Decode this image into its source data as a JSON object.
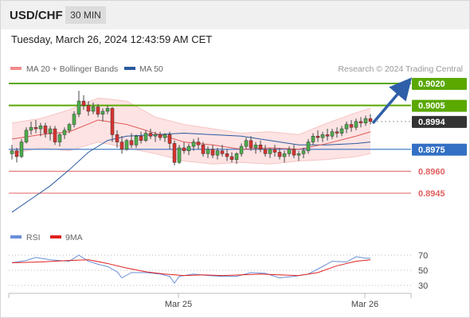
{
  "header": {
    "pair": "USD/CHF",
    "timeframe": "30 MIN"
  },
  "timestamp": "Tuesday, March 26, 2024 12:43:59 AM CET",
  "legend": {
    "ma20_label": "MA 20 + Bollinger Bands",
    "ma50_label": "MA 50",
    "ma20_color": "#f28b8b",
    "ma50_color": "#2a5aa0"
  },
  "copyright": "Research © 2024 Trading Central",
  "colors": {
    "resistance": "#5aa800",
    "support": "#e06060",
    "pivot": "#3370c4",
    "arrow": "#2f5fa8",
    "bullish": "#4cae4c",
    "bearish": "#d9332f",
    "band_fill": "#fde3e3",
    "rsi": "#6a8fd8",
    "rsi_ma": "#e02020"
  },
  "chart_data": [
    {
      "type": "candlestick",
      "title": "USD/CHF 30 MIN",
      "ylim": [
        0.8925,
        0.9025
      ],
      "levels": [
        {
          "value": "0.9020",
          "kind": "resistance"
        },
        {
          "value": "0.9005",
          "kind": "resistance"
        },
        {
          "value": "0.8994",
          "kind": "current"
        },
        {
          "value": "0.8975",
          "kind": "pivot"
        },
        {
          "value": "0.8960",
          "kind": "support"
        },
        {
          "value": "0.8945",
          "kind": "support"
        }
      ],
      "forecast": "up",
      "candles": [
        [
          0.8972,
          0.8978,
          0.8968,
          0.8974
        ],
        [
          0.8974,
          0.8976,
          0.8966,
          0.897
        ],
        [
          0.897,
          0.8982,
          0.8969,
          0.898
        ],
        [
          0.898,
          0.899,
          0.8979,
          0.8988
        ],
        [
          0.8988,
          0.8994,
          0.8985,
          0.899
        ],
        [
          0.899,
          0.8995,
          0.8986,
          0.8989
        ],
        [
          0.8989,
          0.8993,
          0.8984,
          0.8991
        ],
        [
          0.8991,
          0.8993,
          0.8983,
          0.8986
        ],
        [
          0.8986,
          0.8991,
          0.8981,
          0.8989
        ],
        [
          0.8989,
          0.8991,
          0.8978,
          0.898
        ],
        [
          0.898,
          0.8986,
          0.8977,
          0.8985
        ],
        [
          0.8985,
          0.899,
          0.8982,
          0.8988
        ],
        [
          0.8988,
          0.8993,
          0.8986,
          0.8992
        ],
        [
          0.8992,
          0.9001,
          0.899,
          0.8999
        ],
        [
          0.8999,
          0.9015,
          0.8997,
          0.9008
        ],
        [
          0.9008,
          0.9012,
          0.9002,
          0.9005
        ],
        [
          0.9005,
          0.9008,
          0.8998,
          0.9001
        ],
        [
          0.9001,
          0.9007,
          0.8999,
          0.9004
        ],
        [
          0.9004,
          0.9006,
          0.8997,
          0.8999
        ],
        [
          0.8999,
          0.9003,
          0.8994,
          0.9001
        ],
        [
          0.9001,
          0.9005,
          0.8999,
          0.9003
        ],
        [
          0.9003,
          0.9004,
          0.898,
          0.8985
        ],
        [
          0.8985,
          0.8988,
          0.8976,
          0.898
        ],
        [
          0.898,
          0.8984,
          0.8972,
          0.8975
        ],
        [
          0.8975,
          0.8982,
          0.8974,
          0.8981
        ],
        [
          0.8981,
          0.8986,
          0.8976,
          0.8978
        ],
        [
          0.8978,
          0.8985,
          0.8976,
          0.8984
        ],
        [
          0.8984,
          0.8987,
          0.8979,
          0.8981
        ],
        [
          0.8981,
          0.8988,
          0.898,
          0.8986
        ],
        [
          0.8986,
          0.8989,
          0.8982,
          0.8984
        ],
        [
          0.8984,
          0.8987,
          0.898,
          0.8985
        ],
        [
          0.8985,
          0.8987,
          0.8981,
          0.8983
        ],
        [
          0.8983,
          0.8986,
          0.898,
          0.8985
        ],
        [
          0.8985,
          0.8987,
          0.8975,
          0.8979
        ],
        [
          0.8979,
          0.8981,
          0.8964,
          0.8966
        ],
        [
          0.8966,
          0.8978,
          0.8965,
          0.8976
        ],
        [
          0.8976,
          0.898,
          0.8972,
          0.8974
        ],
        [
          0.8974,
          0.8979,
          0.8971,
          0.8977
        ],
        [
          0.8977,
          0.8982,
          0.8974,
          0.898
        ],
        [
          0.898,
          0.8983,
          0.8975,
          0.8978
        ],
        [
          0.8978,
          0.898,
          0.897,
          0.8972
        ],
        [
          0.8972,
          0.8977,
          0.8969,
          0.8975
        ],
        [
          0.8975,
          0.8978,
          0.8969,
          0.8971
        ],
        [
          0.8971,
          0.8976,
          0.8968,
          0.8974
        ],
        [
          0.8974,
          0.8978,
          0.897,
          0.8972
        ],
        [
          0.8972,
          0.8975,
          0.8967,
          0.897
        ],
        [
          0.897,
          0.8973,
          0.8966,
          0.8968
        ],
        [
          0.8968,
          0.8973,
          0.8965,
          0.8972
        ],
        [
          0.8972,
          0.8979,
          0.897,
          0.8977
        ],
        [
          0.8977,
          0.8983,
          0.8975,
          0.8981
        ],
        [
          0.8981,
          0.8984,
          0.8974,
          0.8976
        ],
        [
          0.8976,
          0.898,
          0.8972,
          0.8978
        ],
        [
          0.8978,
          0.8981,
          0.8973,
          0.8975
        ],
        [
          0.8975,
          0.8978,
          0.897,
          0.8972
        ],
        [
          0.8972,
          0.8976,
          0.8969,
          0.8975
        ],
        [
          0.8975,
          0.8978,
          0.897,
          0.8973
        ],
        [
          0.8973,
          0.8976,
          0.8968,
          0.897
        ],
        [
          0.897,
          0.8974,
          0.8966,
          0.8972
        ],
        [
          0.8972,
          0.8977,
          0.897,
          0.8975
        ],
        [
          0.8975,
          0.8978,
          0.8969,
          0.8971
        ],
        [
          0.8971,
          0.8974,
          0.8967,
          0.8972
        ],
        [
          0.8972,
          0.8976,
          0.8969,
          0.8974
        ],
        [
          0.8974,
          0.8982,
          0.8972,
          0.898
        ],
        [
          0.898,
          0.8986,
          0.8978,
          0.8984
        ],
        [
          0.8984,
          0.8988,
          0.898,
          0.8983
        ],
        [
          0.8983,
          0.8987,
          0.898,
          0.8985
        ],
        [
          0.8985,
          0.8989,
          0.8981,
          0.8984
        ],
        [
          0.8984,
          0.8989,
          0.8982,
          0.8987
        ],
        [
          0.8987,
          0.899,
          0.8983,
          0.8986
        ],
        [
          0.8986,
          0.8991,
          0.8984,
          0.8989
        ],
        [
          0.8989,
          0.8994,
          0.8986,
          0.8992
        ],
        [
          0.8992,
          0.8995,
          0.8987,
          0.899
        ],
        [
          0.899,
          0.8996,
          0.8988,
          0.8994
        ],
        [
          0.8994,
          0.8997,
          0.899,
          0.8993
        ],
        [
          0.8993,
          0.8998,
          0.8991,
          0.8996
        ],
        [
          0.8996,
          0.8999,
          0.8992,
          0.8994
        ]
      ],
      "ma20": [
        [
          0,
          0.8982
        ],
        [
          6,
          0.8985
        ],
        [
          12,
          0.8987
        ],
        [
          18,
          0.8995
        ],
        [
          24,
          0.8992
        ],
        [
          30,
          0.8986
        ],
        [
          36,
          0.898
        ],
        [
          42,
          0.8978
        ],
        [
          48,
          0.8975
        ],
        [
          54,
          0.8976
        ],
        [
          60,
          0.8975
        ],
        [
          66,
          0.8979
        ],
        [
          72,
          0.8984
        ],
        [
          75,
          0.8987
        ]
      ],
      "ma50": [
        [
          0,
          0.8932
        ],
        [
          4,
          0.8941
        ],
        [
          8,
          0.895
        ],
        [
          12,
          0.8961
        ],
        [
          16,
          0.8973
        ],
        [
          20,
          0.8981
        ],
        [
          24,
          0.8984
        ],
        [
          30,
          0.8985
        ],
        [
          36,
          0.8986
        ],
        [
          42,
          0.8985
        ],
        [
          48,
          0.8984
        ],
        [
          54,
          0.8981
        ],
        [
          60,
          0.8978
        ],
        [
          66,
          0.8978
        ],
        [
          72,
          0.8979
        ],
        [
          75,
          0.898
        ]
      ],
      "bb_upper": [
        [
          0,
          0.8993
        ],
        [
          6,
          0.8996
        ],
        [
          12,
          0.9002
        ],
        [
          18,
          0.901
        ],
        [
          24,
          0.9008
        ],
        [
          30,
          0.8997
        ],
        [
          36,
          0.8992
        ],
        [
          42,
          0.8989
        ],
        [
          48,
          0.8986
        ],
        [
          54,
          0.8987
        ],
        [
          60,
          0.8985
        ],
        [
          66,
          0.8993
        ],
        [
          72,
          0.9
        ],
        [
          75,
          0.9003
        ]
      ],
      "bb_lower": [
        [
          0,
          0.8972
        ],
        [
          6,
          0.8976
        ],
        [
          12,
          0.8974
        ],
        [
          18,
          0.898
        ],
        [
          24,
          0.8976
        ],
        [
          30,
          0.8972
        ],
        [
          36,
          0.8967
        ],
        [
          42,
          0.8965
        ],
        [
          48,
          0.8966
        ],
        [
          54,
          0.8965
        ],
        [
          60,
          0.8967
        ],
        [
          66,
          0.8968
        ],
        [
          72,
          0.897
        ],
        [
          75,
          0.8972
        ]
      ]
    },
    {
      "type": "line",
      "title": "RSI",
      "ylim": [
        20,
        80
      ],
      "y_ticks": [
        "70",
        "50",
        "30"
      ],
      "legend": [
        "RSI",
        "9MA"
      ],
      "series": [
        {
          "name": "RSI",
          "values": [
            [
              0,
              60
            ],
            [
              3,
              63
            ],
            [
              5,
              67
            ],
            [
              8,
              64
            ],
            [
              12,
              62
            ],
            [
              14,
              70
            ],
            [
              16,
              62
            ],
            [
              18,
              58
            ],
            [
              20,
              55
            ],
            [
              22,
              48
            ],
            [
              23,
              40
            ],
            [
              25,
              47
            ],
            [
              28,
              47
            ],
            [
              31,
              45
            ],
            [
              33,
              42
            ],
            [
              34,
              33
            ],
            [
              35,
              42
            ],
            [
              38,
              45
            ],
            [
              41,
              43
            ],
            [
              44,
              42
            ],
            [
              47,
              42
            ],
            [
              50,
              47
            ],
            [
              53,
              46
            ],
            [
              56,
              40
            ],
            [
              59,
              42
            ],
            [
              62,
              45
            ],
            [
              65,
              55
            ],
            [
              67,
              62
            ],
            [
              70,
              61
            ],
            [
              72,
              68
            ],
            [
              74,
              66
            ],
            [
              75,
              66
            ]
          ]
        },
        {
          "name": "9MA",
          "values": [
            [
              0,
              60
            ],
            [
              6,
              61
            ],
            [
              12,
              63
            ],
            [
              16,
              64
            ],
            [
              20,
              59
            ],
            [
              24,
              53
            ],
            [
              28,
              48
            ],
            [
              32,
              45
            ],
            [
              36,
              43
            ],
            [
              40,
              44
            ],
            [
              44,
              43
            ],
            [
              48,
              44
            ],
            [
              52,
              45
            ],
            [
              56,
              44
            ],
            [
              60,
              43
            ],
            [
              64,
              47
            ],
            [
              68,
              56
            ],
            [
              72,
              62
            ],
            [
              75,
              64
            ]
          ]
        }
      ]
    }
  ],
  "x_axis": {
    "labels": [
      "Mar 25",
      "Mar 26"
    ]
  }
}
